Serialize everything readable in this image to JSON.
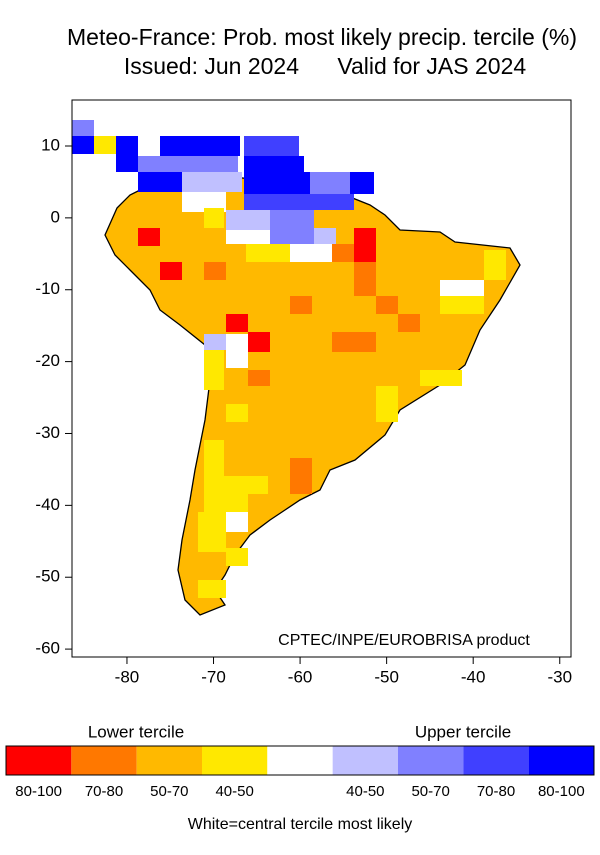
{
  "map": {
    "title": [
      "Meteo-France: Prob. most likely precip. tercile (%)",
      "Issued: Jun 2024      Valid for JAS 2024"
    ],
    "xlim": [
      -86.35,
      -28.7
    ],
    "ylim": [
      -61.1,
      16.4
    ],
    "xticks": [
      -80,
      -70,
      -60,
      -50,
      -40,
      -30
    ],
    "yticks": [
      -60,
      -50,
      -40,
      -30,
      -20,
      -10,
      0,
      10
    ],
    "credit": "CPTEC/INPE/EUROBRISA product"
  },
  "legend": {
    "lower_title": "Lower tercile",
    "upper_title": "Upper tercile",
    "lower": [
      {
        "color": "#ff0000",
        "label": "80-100"
      },
      {
        "color": "#ff7800",
        "label": "70-80"
      },
      {
        "color": "#ffb900",
        "label": "50-70"
      },
      {
        "color": "#ffe800",
        "label": "40-50"
      }
    ],
    "upper": [
      {
        "color": "#c0c0ff",
        "label": "40-50"
      },
      {
        "color": "#8080ff",
        "label": "50-70"
      },
      {
        "color": "#4040ff",
        "label": "70-80"
      },
      {
        "color": "#0000ff",
        "label": "80-100"
      }
    ],
    "note": "White=central tercile most likely"
  }
}
